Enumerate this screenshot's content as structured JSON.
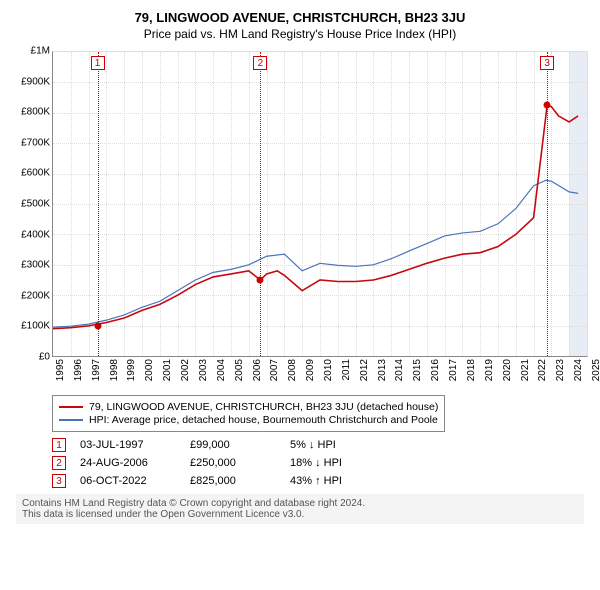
{
  "title": "79, LINGWOOD AVENUE, CHRISTCHURCH, BH23 3JU",
  "subtitle": "Price paid vs. HM Land Registry's House Price Index (HPI)",
  "chart": {
    "type": "line",
    "x": {
      "min": 1995,
      "max": 2025,
      "tick_step": 1
    },
    "y": {
      "min": 0,
      "max": 1000000,
      "ticks": [
        0,
        100000,
        200000,
        300000,
        400000,
        500000,
        600000,
        700000,
        800000,
        900000,
        1000000
      ],
      "labels": [
        "£0",
        "£100K",
        "£200K",
        "£300K",
        "£400K",
        "£500K",
        "£600K",
        "£700K",
        "£800K",
        "£900K",
        "£1M"
      ]
    },
    "grid_color": "#dddddd",
    "recent_band": {
      "from": 2024,
      "to": 2025,
      "color": "#e8edf5"
    },
    "series": [
      {
        "name": "property",
        "label": "79, LINGWOOD AVENUE, CHRISTCHURCH, BH23 3JU (detached house)",
        "color": "#c6080f",
        "width": 1.6,
        "points": [
          [
            1995,
            90000
          ],
          [
            1996,
            93000
          ],
          [
            1997,
            99000
          ],
          [
            1998,
            110000
          ],
          [
            1999,
            125000
          ],
          [
            2000,
            150000
          ],
          [
            2001,
            170000
          ],
          [
            2002,
            200000
          ],
          [
            2003,
            235000
          ],
          [
            2004,
            260000
          ],
          [
            2005,
            270000
          ],
          [
            2006,
            280000
          ],
          [
            2006.65,
            250000
          ],
          [
            2007,
            270000
          ],
          [
            2007.6,
            280000
          ],
          [
            2008,
            265000
          ],
          [
            2009,
            215000
          ],
          [
            2010,
            250000
          ],
          [
            2011,
            245000
          ],
          [
            2012,
            245000
          ],
          [
            2013,
            250000
          ],
          [
            2014,
            265000
          ],
          [
            2015,
            285000
          ],
          [
            2016,
            305000
          ],
          [
            2017,
            322000
          ],
          [
            2018,
            335000
          ],
          [
            2019,
            340000
          ],
          [
            2020,
            360000
          ],
          [
            2021,
            400000
          ],
          [
            2022,
            455000
          ],
          [
            2022.76,
            825000
          ],
          [
            2023,
            820000
          ],
          [
            2023.4,
            790000
          ],
          [
            2024,
            770000
          ],
          [
            2024.5,
            790000
          ]
        ]
      },
      {
        "name": "hpi",
        "label": "HPI: Average price, detached house, Bournemouth Christchurch and Poole",
        "color": "#4a74b8",
        "width": 1.2,
        "points": [
          [
            1995,
            95000
          ],
          [
            1996,
            98000
          ],
          [
            1997,
            105000
          ],
          [
            1998,
            118000
          ],
          [
            1999,
            135000
          ],
          [
            2000,
            160000
          ],
          [
            2001,
            180000
          ],
          [
            2002,
            215000
          ],
          [
            2003,
            250000
          ],
          [
            2004,
            275000
          ],
          [
            2005,
            285000
          ],
          [
            2006,
            300000
          ],
          [
            2007,
            328000
          ],
          [
            2008,
            335000
          ],
          [
            2009,
            280000
          ],
          [
            2010,
            305000
          ],
          [
            2011,
            298000
          ],
          [
            2012,
            295000
          ],
          [
            2013,
            300000
          ],
          [
            2014,
            320000
          ],
          [
            2015,
            345000
          ],
          [
            2016,
            370000
          ],
          [
            2017,
            395000
          ],
          [
            2018,
            405000
          ],
          [
            2019,
            410000
          ],
          [
            2020,
            435000
          ],
          [
            2021,
            485000
          ],
          [
            2022,
            560000
          ],
          [
            2022.7,
            578000
          ],
          [
            2023,
            575000
          ],
          [
            2024,
            540000
          ],
          [
            2024.5,
            535000
          ]
        ]
      }
    ],
    "markers": [
      {
        "num": "1",
        "x": 1997.5,
        "y": 99000
      },
      {
        "num": "2",
        "x": 2006.65,
        "y": 250000
      },
      {
        "num": "3",
        "x": 2022.76,
        "y": 825000
      }
    ]
  },
  "legend": {
    "items": [
      {
        "color": "#c6080f",
        "label": "79, LINGWOOD AVENUE, CHRISTCHURCH, BH23 3JU (detached house)"
      },
      {
        "color": "#4a74b8",
        "label": "HPI: Average price, detached house, Bournemouth Christchurch and Poole"
      }
    ]
  },
  "sales": [
    {
      "num": "1",
      "date": "03-JUL-1997",
      "price": "£99,000",
      "diff": "5% ↓ HPI"
    },
    {
      "num": "2",
      "date": "24-AUG-2006",
      "price": "£250,000",
      "diff": "18% ↓ HPI"
    },
    {
      "num": "3",
      "date": "06-OCT-2022",
      "price": "£825,000",
      "diff": "43% ↑ HPI"
    }
  ],
  "footnote": {
    "line1": "Contains HM Land Registry data © Crown copyright and database right 2024.",
    "line2": "This data is licensed under the Open Government Licence v3.0."
  }
}
